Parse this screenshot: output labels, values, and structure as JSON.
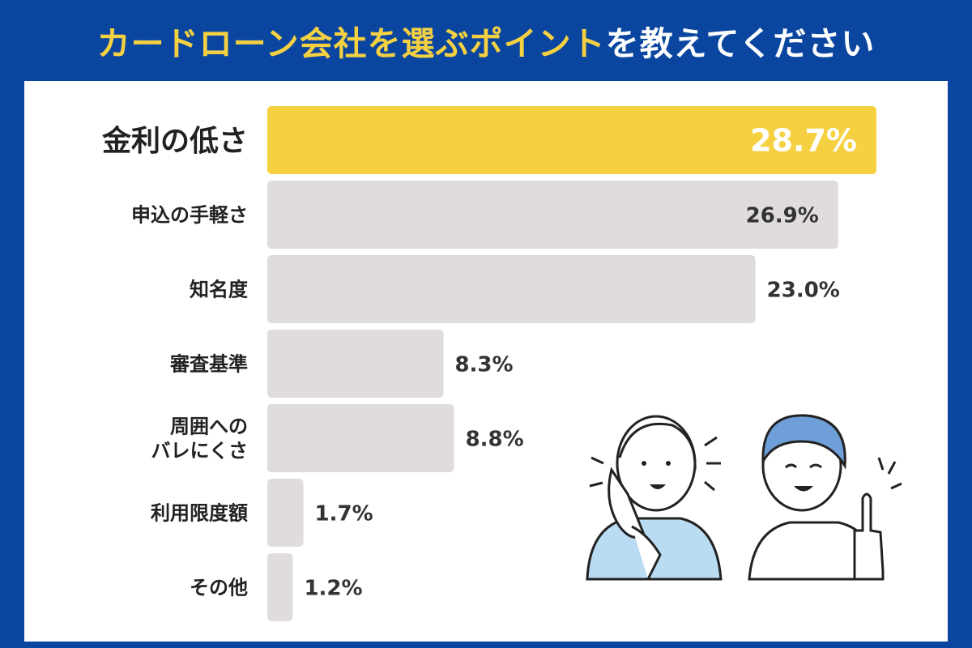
{
  "title": {
    "highlight": "カードローン会社を選ぶポイント",
    "rest": "を教えてください"
  },
  "colors": {
    "frame": "#0a46a0",
    "highlight_bar": "#f5d142",
    "bar": "#e0dcdc",
    "title_highlight": "#f5d142"
  },
  "chart_data": {
    "type": "bar",
    "orientation": "horizontal",
    "title": "カードローン会社を選ぶポイントを教えてください",
    "categories": [
      "金利の低さ",
      "申込の手軽さ",
      "知名度",
      "審査基準",
      "周囲への\nバレにくさ",
      "利用限度額",
      "その他"
    ],
    "values": [
      28.7,
      26.9,
      23.0,
      8.3,
      8.8,
      1.7,
      1.2
    ],
    "value_labels": [
      "28.7%",
      "26.9%",
      "23.0%",
      "8.3%",
      "8.8%",
      "1.7%",
      "1.2%"
    ],
    "unit": "%",
    "highlight_index": 0,
    "xlim": [
      0,
      28.7
    ],
    "grid": false,
    "legend": "none"
  },
  "illustrations": {
    "left_person": "woman-on-phone-illustration",
    "right_person": "woman-pointing-up-illustration"
  }
}
